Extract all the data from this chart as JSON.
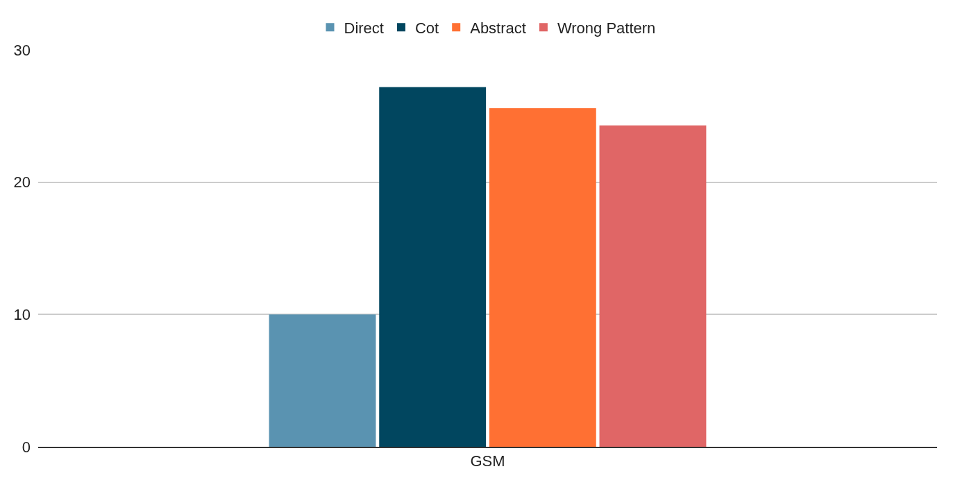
{
  "chart_data": {
    "type": "bar",
    "categories": [
      "GSM"
    ],
    "series": [
      {
        "name": "Direct",
        "color": "#5a93b1",
        "values": [
          10.0
        ]
      },
      {
        "name": "Cot",
        "color": "#01465f",
        "values": [
          27.2
        ]
      },
      {
        "name": "Abstract",
        "color": "#ff7033",
        "values": [
          25.6
        ]
      },
      {
        "name": "Wrong Pattern",
        "color": "#e06666",
        "values": [
          24.3
        ]
      }
    ],
    "ylim": [
      0,
      30
    ],
    "yticks": [
      0,
      10,
      20,
      30
    ],
    "grid": "y",
    "legend": "top"
  }
}
